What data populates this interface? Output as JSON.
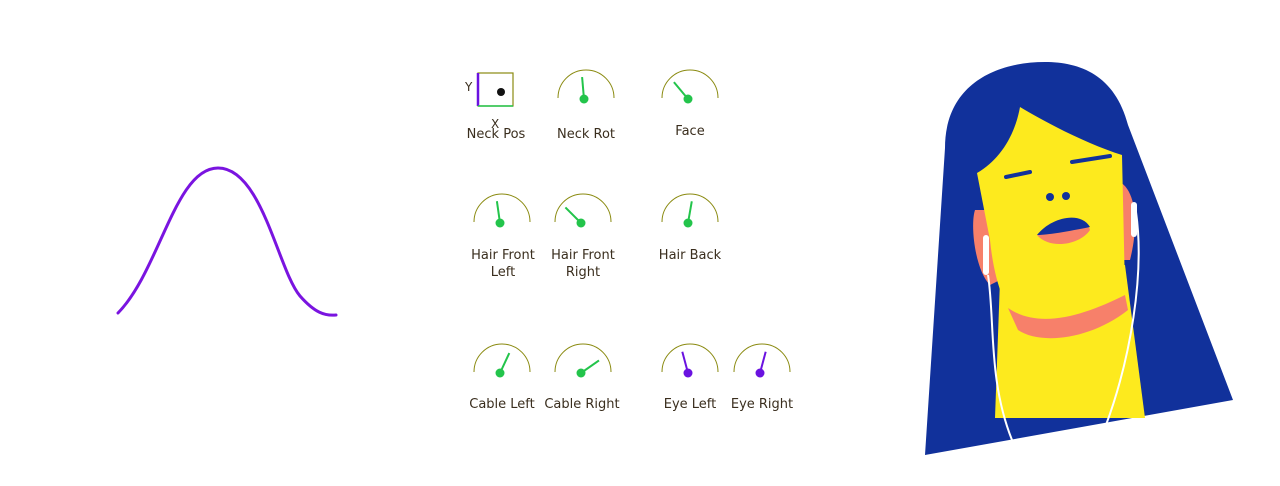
{
  "colors": {
    "accent_green": "#23c44b",
    "accent_purple": "#6a12e0",
    "arc_olive": "#8a8a10",
    "hair_blue": "#11319b",
    "face_yellow": "#fdea1e",
    "skin_salmon": "#f7806a",
    "label_text": "#3a2e1e"
  },
  "wave": {
    "name": "sine-curve",
    "color": "#7a14e0"
  },
  "controls": {
    "neck_pos": {
      "label": "Neck Pos",
      "axis_x": "X",
      "axis_y": "Y",
      "dot_x": 0.7,
      "dot_y": 0.55
    },
    "neck_rot": {
      "label": "Neck Rot",
      "angle": -5,
      "color": "green"
    },
    "face": {
      "label": "Face",
      "angle": -40,
      "color": "green"
    },
    "hair_front_left": {
      "label": "Hair Front\nLeft",
      "angle": -8,
      "color": "green"
    },
    "hair_front_right": {
      "label": "Hair Front\nRight",
      "angle": -45,
      "color": "green"
    },
    "hair_back": {
      "label": "Hair Back",
      "angle": 10,
      "color": "green"
    },
    "cable_left": {
      "label": "Cable Left",
      "angle": 25,
      "color": "green"
    },
    "cable_right": {
      "label": "Cable Right",
      "angle": 55,
      "color": "green"
    },
    "eye_left": {
      "label": "Eye Left",
      "angle": -15,
      "color": "purple"
    },
    "eye_right": {
      "label": "Eye Right",
      "angle": 15,
      "color": "purple"
    }
  },
  "character": {
    "name": "girl-with-earphones"
  }
}
